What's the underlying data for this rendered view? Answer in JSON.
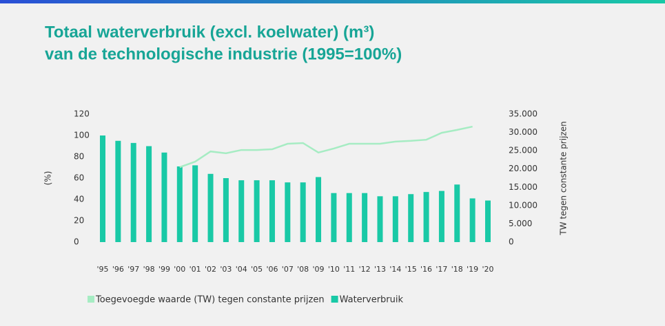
{
  "chart_data": {
    "type": "bar",
    "title": [
      "Totaal waterverbruik (excl. koelwater) (m³)",
      "van de technologische industrie (1995=100%)"
    ],
    "ylabel": "(%)",
    "y2label": "TW tegen constante prijzen",
    "categories": [
      "'95",
      "'96",
      "'97",
      "'98",
      "'99",
      "'00",
      "'01",
      "'02",
      "'03",
      "'04",
      "'05",
      "'06",
      "'07",
      "'08",
      "'09",
      "'10",
      "'11",
      "'12",
      "'13",
      "'14",
      "'15",
      "'16",
      "'17",
      "'18",
      "'19",
      "'20"
    ],
    "series": [
      {
        "name": "Toegevoegde waarde (TW) tegen constante prijzen",
        "type": "line",
        "axis": "y2",
        "color": "#a6ecc3",
        "values": [
          null,
          null,
          null,
          null,
          null,
          20500,
          22000,
          24800,
          24300,
          25200,
          25200,
          25400,
          26900,
          27100,
          24500,
          25600,
          26900,
          26900,
          26900,
          27500,
          27700,
          28000,
          29900,
          30700,
          31600,
          null
        ]
      },
      {
        "name": "Waterverbruik",
        "type": "bar",
        "axis": "y",
        "color": "#19c9a6",
        "values": [
          100,
          95,
          93,
          90,
          84,
          71,
          72,
          64,
          60,
          58,
          58,
          58,
          56,
          56,
          61,
          46,
          46,
          46,
          43,
          43,
          45,
          47,
          48,
          54,
          41,
          39
        ]
      }
    ],
    "ylim": [
      0,
      120
    ],
    "yticks": [
      0,
      20,
      40,
      60,
      80,
      100,
      120
    ],
    "y2lim": [
      0,
      35000
    ],
    "y2ticks": [
      0,
      {
        "value": 5000,
        "label": "5.000"
      },
      {
        "value": 10000,
        "label": "10.000"
      },
      {
        "value": 15000,
        "label": "15.000"
      },
      {
        "value": 20000,
        "label": "20.000"
      },
      {
        "value": 25000,
        "label": "25.000"
      },
      {
        "value": 30000,
        "label": "30.000"
      },
      {
        "value": 35000,
        "label": "35.000"
      }
    ],
    "grid": false,
    "legend": "bottom"
  }
}
